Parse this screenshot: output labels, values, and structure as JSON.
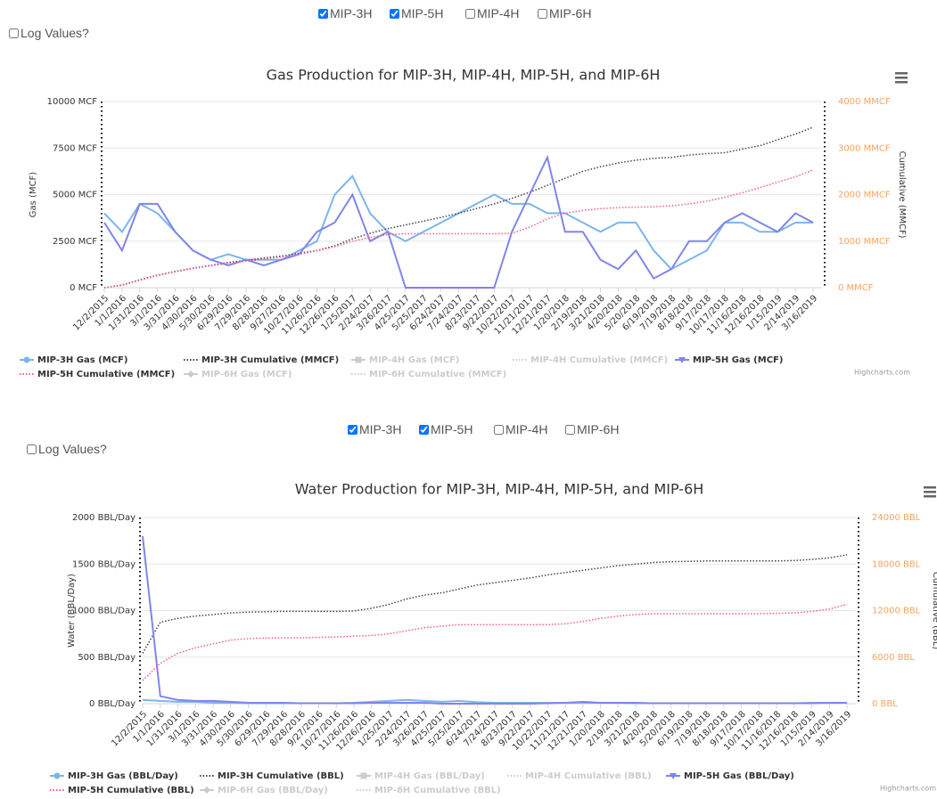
{
  "controls": [
    {
      "checkboxes": [
        {
          "label": "MIP-3H",
          "checked": true
        },
        {
          "label": "MIP-5H",
          "checked": true
        },
        {
          "label": "MIP-4H",
          "checked": false
        },
        {
          "label": "MIP-6H",
          "checked": false
        }
      ],
      "log_label": "Log Values?",
      "log_checked": false
    },
    {
      "checkboxes": [
        {
          "label": "MIP-3H",
          "checked": true
        },
        {
          "label": "MIP-5H",
          "checked": true
        },
        {
          "label": "MIP-4H",
          "checked": false
        },
        {
          "label": "MIP-6H",
          "checked": false
        }
      ],
      "log_label": "Log Values?",
      "log_checked": false
    }
  ],
  "chart_data": [
    {
      "type": "line",
      "title": "Gas Production for MIP-3H, MIP-4H, MIP-5H, and MIP-6H",
      "credits": "Highcharts.com",
      "y_label": "Gas (MCF)",
      "y2_label": "Cumulative (MMCF)",
      "y2_label_color": "#f7a35c",
      "grid": true,
      "categories": [
        "12/2/2015",
        "1/1/2016",
        "1/31/2016",
        "3/1/2016",
        "3/31/2016",
        "4/30/2016",
        "5/30/2016",
        "6/29/2016",
        "7/29/2016",
        "8/28/2016",
        "9/27/2016",
        "10/27/2016",
        "11/26/2016",
        "12/26/2016",
        "1/25/2017",
        "2/24/2017",
        "3/26/2017",
        "4/25/2017",
        "5/25/2017",
        "6/24/2017",
        "7/24/2017",
        "8/23/2017",
        "9/22/2017",
        "10/22/2017",
        "11/21/2017",
        "12/21/2017",
        "1/20/2018",
        "2/19/2018",
        "3/21/2018",
        "4/20/2018",
        "5/20/2018",
        "6/19/2018",
        "7/19/2018",
        "8/18/2018",
        "9/17/2018",
        "10/17/2018",
        "11/16/2018",
        "12/16/2018",
        "1/15/2019",
        "2/14/2019",
        "3/16/2019"
      ],
      "ylim": [
        0,
        10000
      ],
      "yticks": [
        {
          "value": 0,
          "label": "0 MCF"
        },
        {
          "value": 2500,
          "label": "2500 MCF"
        },
        {
          "value": 5000,
          "label": "5000 MCF"
        },
        {
          "value": 7500,
          "label": "7500 MCF"
        },
        {
          "value": 10000,
          "label": "10000 MCF"
        }
      ],
      "y2lim": [
        0,
        4000
      ],
      "y2ticks": [
        {
          "value": 0,
          "label": "0 MMCF"
        },
        {
          "value": 1000,
          "label": "1000 MMCF"
        },
        {
          "value": 2000,
          "label": "2000 MMCF"
        },
        {
          "value": 3000,
          "label": "3000 MMCF"
        },
        {
          "value": 4000,
          "label": "4000 MMCF"
        }
      ],
      "series": [
        {
          "name": "MIP-3H Gas (MCF)",
          "color": "#7cb5ec",
          "marker": "circle",
          "visible": true,
          "values": [
            4000,
            3000,
            4500,
            4000,
            3000,
            2000,
            1500,
            1800,
            1500,
            1500,
            1500,
            2000,
            2500,
            5000,
            6000,
            4000,
            3000,
            2500,
            3000,
            3500,
            4000,
            4500,
            5000,
            4500,
            4500,
            4000,
            4000,
            3500,
            3000,
            3500,
            3500,
            2000,
            1000,
            1500,
            2000,
            3500,
            3500,
            3000,
            3000,
            3500,
            3500
          ]
        },
        {
          "name": "MIP-3H Cumulative (MMCF)",
          "color": "#434348",
          "dash": "dot",
          "axis": "y2",
          "visible": true,
          "values": [
            0,
            60,
            170,
            270,
            350,
            420,
            480,
            540,
            590,
            640,
            680,
            740,
            800,
            900,
            1050,
            1170,
            1270,
            1350,
            1430,
            1510,
            1600,
            1700,
            1800,
            1920,
            2050,
            2200,
            2350,
            2500,
            2600,
            2680,
            2740,
            2780,
            2800,
            2850,
            2880,
            2900,
            2980,
            3050,
            3180,
            3300,
            3450
          ]
        },
        {
          "name": "MIP-4H Gas (MCF)",
          "color": "#cccccc",
          "marker": "square",
          "visible": false
        },
        {
          "name": "MIP-4H Cumulative (MMCF)",
          "color": "#cccccc",
          "dash": "dot",
          "axis": "y2",
          "visible": false
        },
        {
          "name": "MIP-5H Gas (MCF)",
          "color": "#8085e9",
          "marker": "triangle-down",
          "visible": true,
          "values": [
            3500,
            2000,
            4500,
            4500,
            3000,
            2000,
            1500,
            1200,
            1500,
            1200,
            1500,
            1800,
            3000,
            3500,
            5000,
            2500,
            3000,
            0,
            0,
            0,
            0,
            0,
            0,
            3000,
            5000,
            7000,
            3000,
            3000,
            1500,
            1000,
            2000,
            500,
            1000,
            2500,
            2500,
            3500,
            4000,
            3500,
            3000,
            4000,
            3500
          ]
        },
        {
          "name": "MIP-5H Cumulative (MMCF)",
          "color": "#f45b8b",
          "dash": "dot",
          "axis": "y2",
          "visible": true,
          "values": [
            0,
            50,
            160,
            260,
            340,
            410,
            470,
            520,
            570,
            610,
            660,
            720,
            790,
            880,
            1000,
            1080,
            1140,
            1160,
            1160,
            1160,
            1160,
            1160,
            1160,
            1170,
            1300,
            1480,
            1600,
            1660,
            1700,
            1720,
            1730,
            1740,
            1760,
            1800,
            1860,
            1940,
            2040,
            2150,
            2270,
            2380,
            2530
          ]
        },
        {
          "name": "MIP-6H Gas (MCF)",
          "color": "#cccccc",
          "marker": "diamond",
          "visible": false
        },
        {
          "name": "MIP-6H Cumulative (MMCF)",
          "color": "#cccccc",
          "dash": "dot",
          "axis": "y2",
          "visible": false
        }
      ]
    },
    {
      "type": "line",
      "title": "Water Production for MIP-3H, MIP-4H, MIP-5H, and MIP-6H",
      "credits": "Highcharts.com",
      "y_label": "Water (BBL/Day)",
      "y2_label": "Cumulative (BBL)",
      "y2_label_color": "#f7a35c",
      "grid": true,
      "categories": [
        "12/2/2015",
        "1/1/2016",
        "1/31/2016",
        "3/1/2016",
        "3/31/2016",
        "4/30/2016",
        "5/30/2016",
        "6/29/2016",
        "7/29/2016",
        "8/28/2016",
        "9/27/2016",
        "10/27/2016",
        "11/26/2016",
        "12/26/2016",
        "1/25/2017",
        "2/24/2017",
        "3/26/2017",
        "4/25/2017",
        "5/25/2017",
        "6/24/2017",
        "7/24/2017",
        "8/23/2017",
        "9/22/2017",
        "10/22/2017",
        "11/21/2017",
        "12/21/2017",
        "1/20/2018",
        "2/19/2018",
        "3/21/2018",
        "4/20/2018",
        "5/20/2018",
        "6/19/2018",
        "7/19/2018",
        "8/18/2018",
        "9/17/2018",
        "10/17/2018",
        "11/16/2018",
        "12/16/2018",
        "1/15/2019",
        "2/14/2019",
        "3/16/2019"
      ],
      "ylim": [
        0,
        2000
      ],
      "yticks": [
        {
          "value": 0,
          "label": "0 BBL/Day"
        },
        {
          "value": 500,
          "label": "500 BBL/Day"
        },
        {
          "value": 1000,
          "label": "1000 BBL/Day"
        },
        {
          "value": 1500,
          "label": "1500 BBL/Day"
        },
        {
          "value": 2000,
          "label": "2000 BBL/Day"
        }
      ],
      "y2lim": [
        0,
        24000
      ],
      "y2ticks": [
        {
          "value": 0,
          "label": "0 BBL"
        },
        {
          "value": 6000,
          "label": "6000 BBL"
        },
        {
          "value": 12000,
          "label": "12000 BBL"
        },
        {
          "value": 18000,
          "label": "18000 BBL"
        },
        {
          "value": 24000,
          "label": "24000 BBL"
        }
      ],
      "series": [
        {
          "name": "MIP-3H Gas (BBL/Day)",
          "color": "#7cb5ec",
          "marker": "circle",
          "visible": true,
          "values": [
            40,
            30,
            20,
            20,
            10,
            10,
            5,
            5,
            5,
            5,
            5,
            5,
            10,
            20,
            30,
            40,
            30,
            20,
            30,
            15,
            10,
            10,
            10,
            10,
            10,
            10,
            10,
            10,
            5,
            5,
            5,
            5,
            5,
            5,
            5,
            5,
            5,
            5,
            10,
            10,
            10
          ]
        },
        {
          "name": "MIP-3H Cumulative (BBL)",
          "color": "#434348",
          "dash": "dot",
          "axis": "y2",
          "visible": true,
          "values": [
            6500,
            10500,
            11000,
            11300,
            11500,
            11700,
            11800,
            11850,
            11900,
            11900,
            11900,
            11900,
            11950,
            12300,
            12800,
            13500,
            14000,
            14300,
            14800,
            15300,
            15600,
            15900,
            16200,
            16600,
            16900,
            17200,
            17500,
            17800,
            18000,
            18200,
            18300,
            18350,
            18400,
            18400,
            18400,
            18400,
            18400,
            18450,
            18600,
            18800,
            19200
          ]
        },
        {
          "name": "MIP-4H Gas (BBL/Day)",
          "color": "#cccccc",
          "marker": "square",
          "visible": false
        },
        {
          "name": "MIP-4H Cumulative (BBL)",
          "color": "#cccccc",
          "dash": "dot",
          "axis": "y2",
          "visible": false
        },
        {
          "name": "MIP-5H Gas (BBL/Day)",
          "color": "#8085e9",
          "marker": "triangle-down",
          "visible": true,
          "values": [
            1800,
            80,
            40,
            30,
            30,
            20,
            10,
            10,
            10,
            5,
            5,
            5,
            5,
            10,
            10,
            10,
            10,
            0,
            0,
            0,
            0,
            0,
            0,
            5,
            10,
            20,
            10,
            10,
            10,
            5,
            5,
            5,
            5,
            5,
            5,
            5,
            5,
            5,
            5,
            10,
            10
          ]
        },
        {
          "name": "MIP-5H Cumulative (BBL)",
          "color": "#f45b8b",
          "dash": "dot",
          "axis": "y2",
          "visible": true,
          "values": [
            3000,
            5200,
            6500,
            7200,
            7700,
            8200,
            8400,
            8450,
            8500,
            8500,
            8550,
            8600,
            8700,
            8800,
            9000,
            9400,
            9800,
            10000,
            10200,
            10200,
            10200,
            10200,
            10200,
            10200,
            10300,
            10600,
            11000,
            11300,
            11500,
            11600,
            11600,
            11600,
            11600,
            11600,
            11600,
            11600,
            11650,
            11700,
            11900,
            12200,
            12800
          ]
        },
        {
          "name": "MIP-6H Gas (BBL/Day)",
          "color": "#cccccc",
          "marker": "diamond",
          "visible": false
        },
        {
          "name": "MIP-6H Cumulative (BBL)",
          "color": "#cccccc",
          "dash": "dot",
          "axis": "y2",
          "visible": false
        }
      ]
    }
  ]
}
